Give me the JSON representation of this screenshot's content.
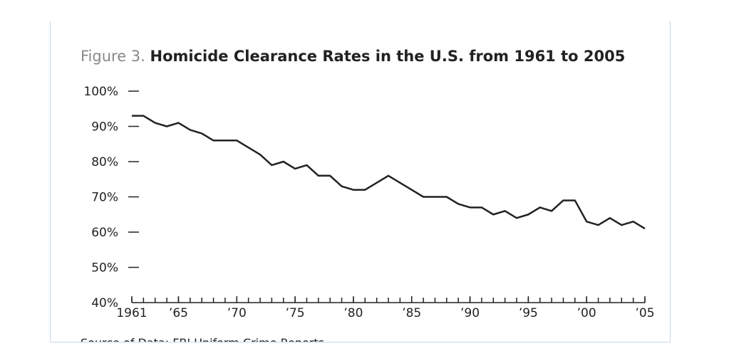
{
  "chart_data": {
    "type": "line",
    "figure_label": "Figure 3.",
    "title": "Homicide Clearance Rates in the U.S. from 1961 to 2005",
    "source": "Source of Data: FBI Uniform Crime Reports",
    "color": "#222222",
    "x": [
      1961,
      1962,
      1963,
      1964,
      1965,
      1966,
      1967,
      1968,
      1969,
      1970,
      1971,
      1972,
      1973,
      1974,
      1975,
      1976,
      1977,
      1978,
      1979,
      1980,
      1981,
      1982,
      1983,
      1984,
      1985,
      1986,
      1987,
      1988,
      1989,
      1990,
      1991,
      1992,
      1993,
      1994,
      1995,
      1996,
      1997,
      1998,
      1999,
      2000,
      2001,
      2002,
      2003,
      2004,
      2005
    ],
    "values": [
      93,
      93,
      91,
      90,
      91,
      89,
      88,
      86,
      86,
      86,
      84,
      82,
      79,
      80,
      78,
      79,
      76,
      76,
      73,
      72,
      72,
      74,
      76,
      74,
      72,
      70,
      70,
      70,
      68,
      67,
      67,
      65,
      66,
      64,
      65,
      67,
      66,
      69,
      69,
      63,
      62,
      64,
      62,
      63,
      61
    ],
    "xlim": [
      1961,
      2005
    ],
    "xticks": [
      1961,
      {
        "value": 1965,
        "label": "’65"
      },
      {
        "value": 1970,
        "label": "’70"
      },
      {
        "value": 1975,
        "label": "’75"
      },
      {
        "value": 1980,
        "label": "’80"
      },
      {
        "value": 1985,
        "label": "’85"
      },
      {
        "value": 1990,
        "label": "’90"
      },
      {
        "value": 1995,
        "label": "’95"
      },
      {
        "value": 2000,
        "label": "’00"
      },
      {
        "value": 2005,
        "label": "’05"
      }
    ],
    "xminorticks": [
      1961,
      1962,
      1963,
      1964,
      1965,
      1966,
      1967,
      1968,
      1969,
      1970,
      1971,
      1972,
      1973,
      1974,
      1975,
      1976,
      1977,
      1978,
      1979,
      1980,
      1981,
      1982,
      1983,
      1984,
      1985,
      1986,
      1987,
      1988,
      1989,
      1990,
      1991,
      1992,
      1993,
      1994,
      1995,
      1996,
      1997,
      1998,
      1999,
      2000,
      2001,
      2002,
      2003,
      2004,
      2005
    ],
    "ylim": [
      40,
      100
    ],
    "yticks": [
      {
        "value": 40,
        "label": "40%"
      },
      {
        "value": 50,
        "label": "50%"
      },
      {
        "value": 60,
        "label": "60%"
      },
      {
        "value": 70,
        "label": "70%"
      },
      {
        "value": 80,
        "label": "80%"
      },
      {
        "value": 90,
        "label": "90%"
      },
      {
        "value": 100,
        "label": "100%"
      }
    ]
  }
}
